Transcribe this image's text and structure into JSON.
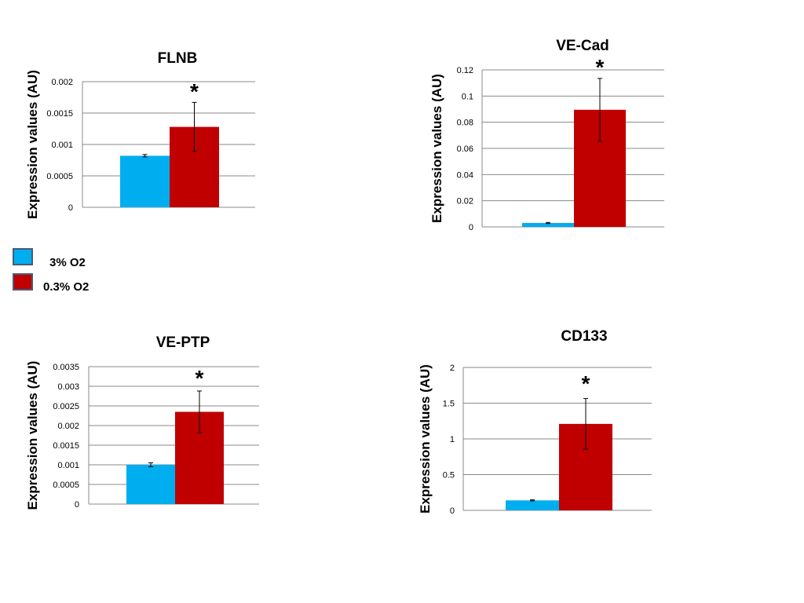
{
  "colors": {
    "series_3": "#00AEEF",
    "series_03": "#C00000",
    "grid": "#888888",
    "axis": "#888888"
  },
  "legend": {
    "items": [
      {
        "label": "3% O2",
        "color": "#00AEEF"
      },
      {
        "label": "0.3% O2",
        "color": "#C00000"
      }
    ]
  },
  "chart_data": [
    {
      "type": "bar",
      "title": "FLNB",
      "ylabel": "Expression values (AU)",
      "ylim": [
        0,
        0.002
      ],
      "ticks": [
        "0",
        "0.0005",
        "0.001",
        "0.0015",
        "0.002"
      ],
      "tick_values": [
        0,
        0.0005,
        0.001,
        0.0015,
        0.002
      ],
      "grid": true,
      "series": [
        {
          "name": "3% O2",
          "value": 0.00082,
          "error": 2e-05
        },
        {
          "name": "0.3% O2",
          "value": 0.00128,
          "error": 0.00039
        }
      ],
      "annotation": "*"
    },
    {
      "type": "bar",
      "title": "VE-Cad",
      "ylabel": "Expression values (AU)",
      "ylim": [
        0,
        0.12
      ],
      "ticks": [
        "0",
        "0.02",
        "0.04",
        "0.06",
        "0.08",
        "0.1",
        "0.12"
      ],
      "tick_values": [
        0,
        0.02,
        0.04,
        0.06,
        0.08,
        0.1,
        0.12
      ],
      "grid": true,
      "series": [
        {
          "name": "3% O2",
          "value": 0.003,
          "error": 0.0004
        },
        {
          "name": "0.3% O2",
          "value": 0.0895,
          "error": 0.024
        }
      ],
      "annotation": "*"
    },
    {
      "type": "bar",
      "title": "VE-PTP",
      "ylabel": "Expression values (AU)",
      "ylim": [
        0,
        0.0035
      ],
      "ticks": [
        "0",
        "0.0005",
        "0.001",
        "0.0015",
        "0.002",
        "0.0025",
        "0.003",
        "0.0035"
      ],
      "tick_values": [
        0,
        0.0005,
        0.001,
        0.0015,
        0.002,
        0.0025,
        0.003,
        0.0035
      ],
      "grid": true,
      "series": [
        {
          "name": "3% O2",
          "value": 0.001,
          "error": 5e-05
        },
        {
          "name": "0.3% O2",
          "value": 0.00235,
          "error": 0.00053
        }
      ],
      "annotation": "*"
    },
    {
      "type": "bar",
      "title": "CD133",
      "ylabel": "Expression values (AU)",
      "ylim": [
        0,
        2
      ],
      "ticks": [
        "0",
        "0.5",
        "1",
        "1.5",
        "2"
      ],
      "tick_values": [
        0,
        0.5,
        1,
        1.5,
        2
      ],
      "grid": true,
      "series": [
        {
          "name": "3% O2",
          "value": 0.14,
          "error": 0.007
        },
        {
          "name": "0.3% O2",
          "value": 1.21,
          "error": 0.355
        }
      ],
      "annotation": "*"
    }
  ]
}
